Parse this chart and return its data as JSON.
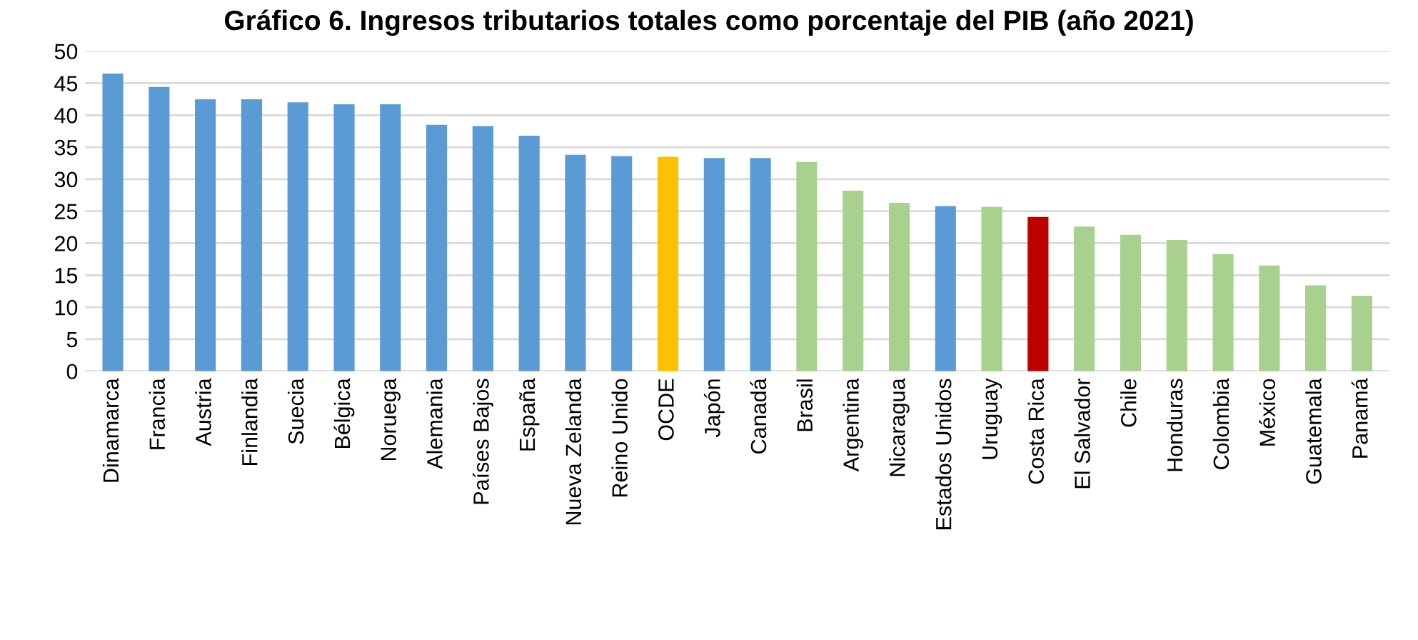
{
  "chart_data": {
    "type": "bar",
    "title": "Gráfico 6. Ingresos tributarios totales como porcentaje del PIB (año 2021)",
    "categories": [
      "Dinamarca",
      "Francia",
      "Austria",
      "Finlandia",
      "Suecia",
      "Bélgica",
      "Noruega",
      "Alemania",
      "Países Bajos",
      "España",
      "Nueva Zelanda",
      "Reino Unido",
      "OCDE",
      "Japón",
      "Canadá",
      "Brasil",
      "Argentina",
      "Nicaragua",
      "Estados Unidos",
      "Uruguay",
      "Costa Rica",
      "El Salvador",
      "Chile",
      "Honduras",
      "Colombia",
      "México",
      "Guatemala",
      "Panamá"
    ],
    "values": [
      46.5,
      44.4,
      42.5,
      42.5,
      42.0,
      41.7,
      41.7,
      38.5,
      38.3,
      36.8,
      33.8,
      33.6,
      33.5,
      33.3,
      33.3,
      32.7,
      28.2,
      26.3,
      25.8,
      25.7,
      24.1,
      22.6,
      21.3,
      20.5,
      18.3,
      16.5,
      13.4,
      11.8
    ],
    "colors": [
      "#5b9bd5",
      "#5b9bd5",
      "#5b9bd5",
      "#5b9bd5",
      "#5b9bd5",
      "#5b9bd5",
      "#5b9bd5",
      "#5b9bd5",
      "#5b9bd5",
      "#5b9bd5",
      "#5b9bd5",
      "#5b9bd5",
      "#ffc000",
      "#5b9bd5",
      "#5b9bd5",
      "#a9d18e",
      "#a9d18e",
      "#a9d18e",
      "#5b9bd5",
      "#a9d18e",
      "#c00000",
      "#a9d18e",
      "#a9d18e",
      "#a9d18e",
      "#a9d18e",
      "#a9d18e",
      "#a9d18e",
      "#a9d18e"
    ],
    "ylim": [
      0,
      50
    ],
    "yticks": [
      0,
      5,
      10,
      15,
      20,
      25,
      30,
      35,
      40,
      45,
      50
    ],
    "grid": "y",
    "legend": false
  }
}
